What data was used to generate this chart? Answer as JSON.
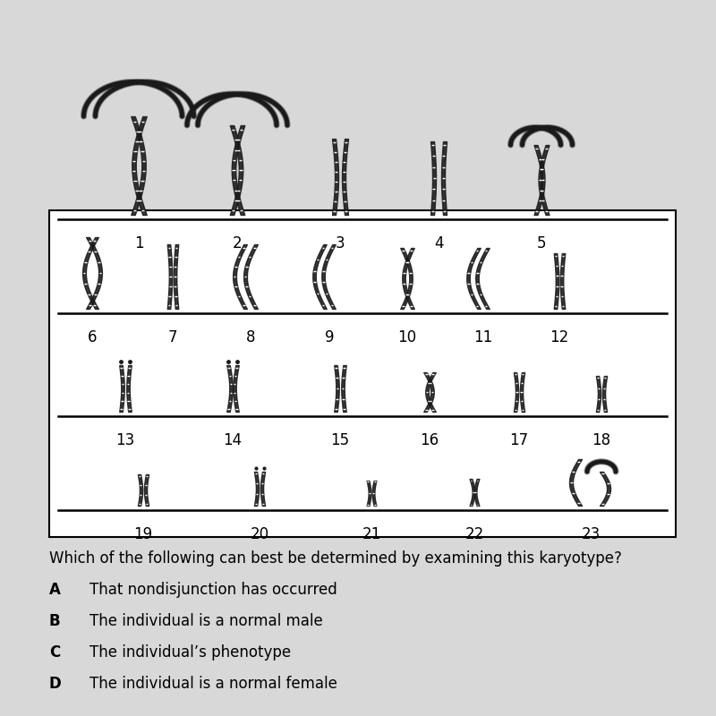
{
  "question": "Which of the following can best be determined by examining this karyotype?",
  "answers": [
    {
      "label": "A",
      "text": "That nondisjunction has occurred"
    },
    {
      "label": "B",
      "text": "The individual is a normal male"
    },
    {
      "label": "C",
      "text": "The individual’s phenotype"
    },
    {
      "label": "D",
      "text": "The individual is a normal female"
    }
  ],
  "bg_color": "#d8d8d8",
  "box_bg": "#f0f0f0",
  "chr_color": "#1a1a1a"
}
